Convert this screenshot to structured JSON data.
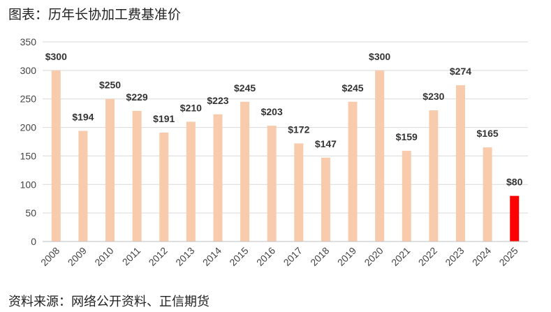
{
  "header": {
    "title": "图表：历年长协加工费基准价"
  },
  "footer": {
    "source": "资料来源：网络公开资料、正信期货"
  },
  "chart_data": {
    "type": "bar",
    "title": "",
    "xlabel": "",
    "ylabel": "",
    "ylim": [
      0,
      350
    ],
    "yticks": [
      0,
      50,
      100,
      150,
      200,
      250,
      300,
      350
    ],
    "grid": true,
    "legend": "none",
    "categories": [
      "2008",
      "2009",
      "2010",
      "2011",
      "2012",
      "2013",
      "2014",
      "2015",
      "2016",
      "2017",
      "2018",
      "2019",
      "2020",
      "2021",
      "2022",
      "2023",
      "2024",
      "2025"
    ],
    "values": [
      300,
      194,
      250,
      229,
      191,
      210,
      223,
      245,
      203,
      172,
      147,
      245,
      300,
      159,
      230,
      274,
      165,
      80
    ],
    "data_labels": [
      "$300",
      "$194",
      "$250",
      "$229",
      "$191",
      "$210",
      "$223",
      "$245",
      "$203",
      "$172",
      "$147",
      "$245",
      "$300",
      "$159",
      "$230",
      "$274",
      "$165",
      "$80"
    ],
    "bar_color": "#f8cbad",
    "highlight_color": "#ff0000",
    "highlight_index": 17
  }
}
